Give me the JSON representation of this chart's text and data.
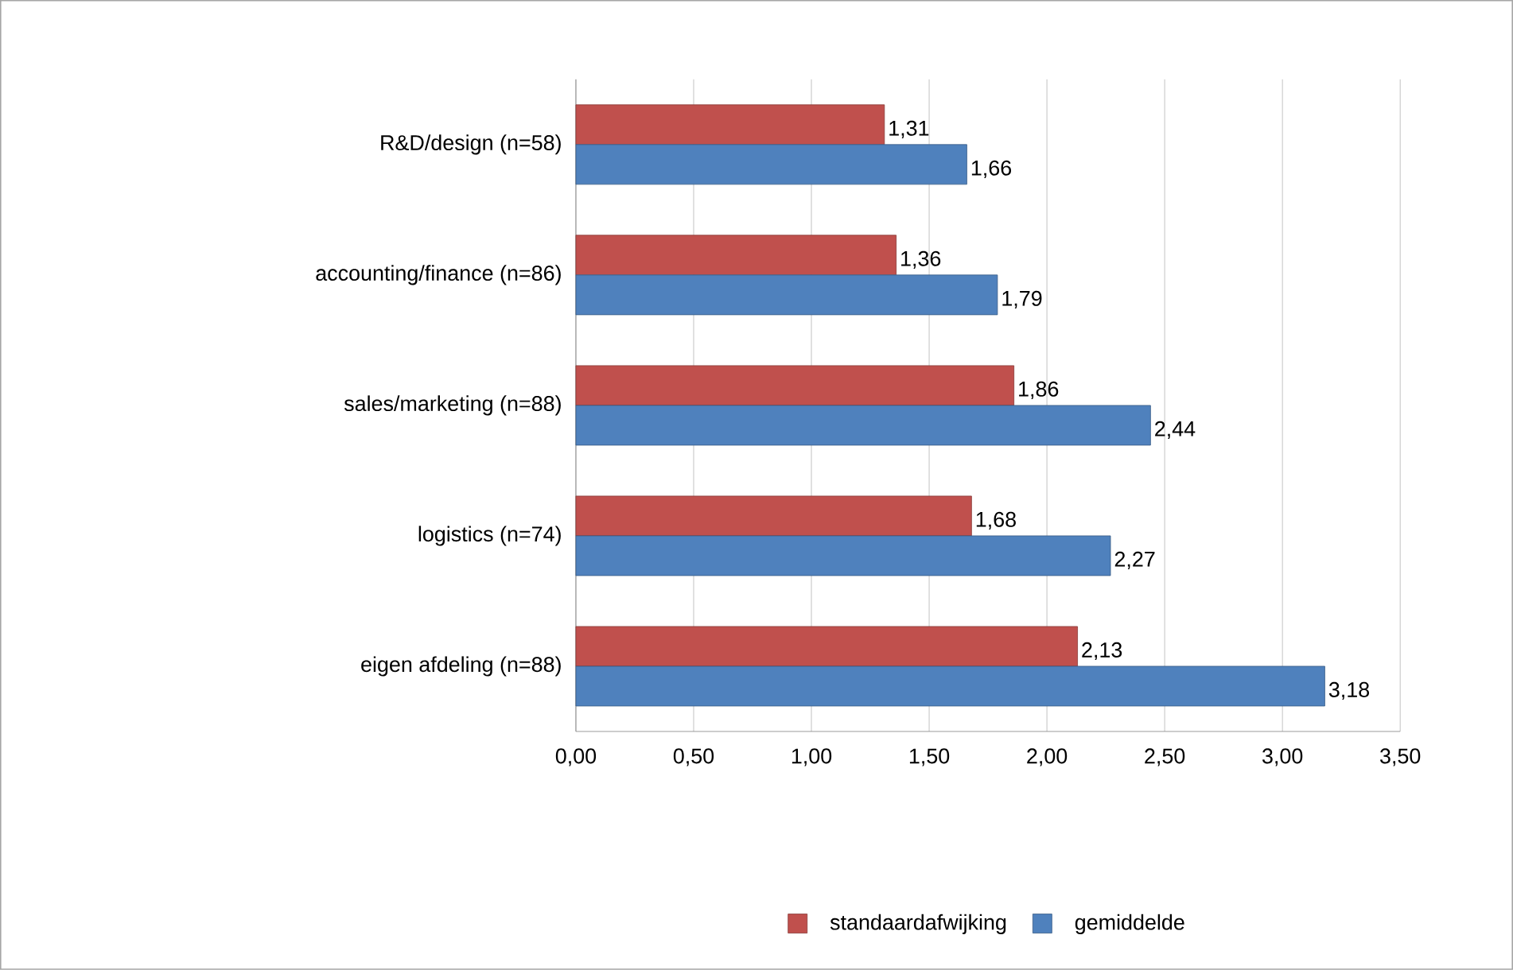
{
  "chart_data": {
    "type": "bar",
    "orientation": "horizontal",
    "categories": [
      "R&D/design (n=58)",
      "accounting/finance (n=86)",
      "sales/marketing (n=88)",
      "logistics (n=74)",
      "eigen afdeling (n=88)"
    ],
    "series": [
      {
        "name": "standaardafwijking",
        "color": "#c0504d",
        "values": [
          1.31,
          1.36,
          1.86,
          1.68,
          2.13
        ],
        "value_labels": [
          "1,31",
          "1,36",
          "1,86",
          "1,68",
          "2,13"
        ]
      },
      {
        "name": "gemiddelde",
        "color": "#4f81bd",
        "values": [
          1.66,
          1.79,
          2.44,
          2.27,
          3.18
        ],
        "value_labels": [
          "1,66",
          "1,79",
          "2,44",
          "2,27",
          "3,18"
        ]
      }
    ],
    "xlim": [
      0,
      3.5
    ],
    "xticks": [
      {
        "value": 0,
        "label": "0,00"
      },
      {
        "value": 0.5,
        "label": "0,50"
      },
      {
        "value": 1,
        "label": "1,00"
      },
      {
        "value": 1.5,
        "label": "1,50"
      },
      {
        "value": 2,
        "label": "2,00"
      },
      {
        "value": 2.5,
        "label": "2,50"
      },
      {
        "value": 3,
        "label": "3,00"
      },
      {
        "value": 3.5,
        "label": "3,50"
      }
    ],
    "grid": "x",
    "legend": "bottom"
  }
}
